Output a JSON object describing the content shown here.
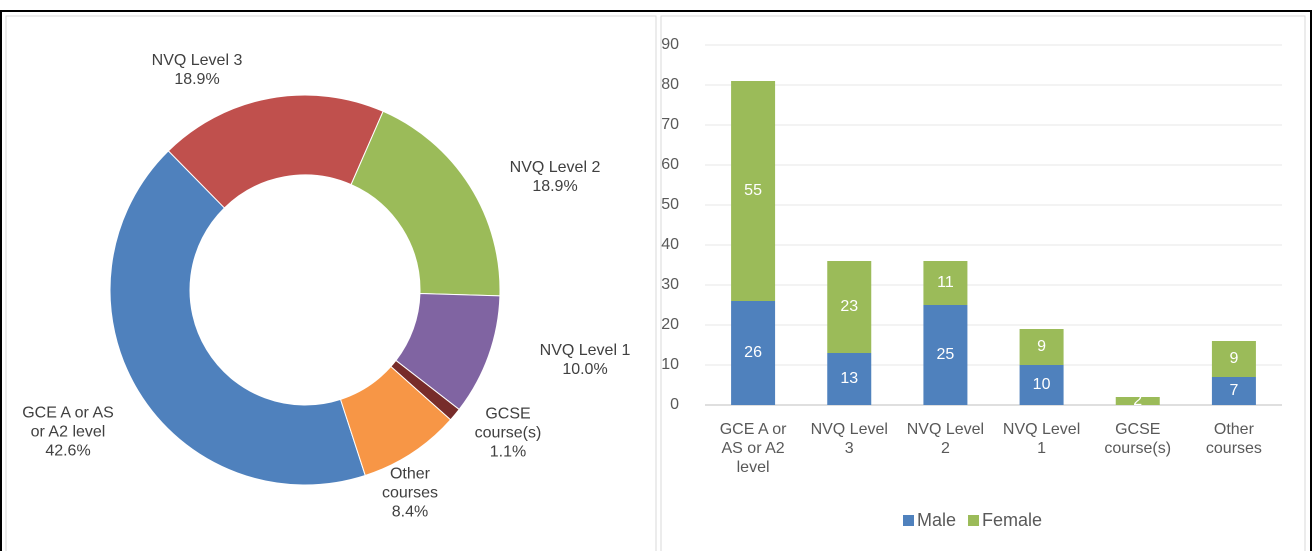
{
  "chart_data": [
    {
      "type": "donut",
      "categories": [
        "GCE A or AS or A2 level",
        "NVQ Level 3",
        "NVQ Level 2",
        "NVQ Level 1",
        "GCSE course(s)",
        "Other courses"
      ],
      "values": [
        42.6,
        18.9,
        18.9,
        10.0,
        1.1,
        8.4
      ],
      "value_labels": [
        "42.6%",
        "18.9%",
        "18.9%",
        "10.0%",
        "1.1%",
        "8.4%"
      ],
      "colors": [
        "#4f81bd",
        "#c0504d",
        "#9bbb59",
        "#8064a2",
        "#772c2a",
        "#f79646"
      ]
    },
    {
      "type": "stacked_bar",
      "categories": [
        "GCE A or AS or A2 level",
        "NVQ Level 3",
        "NVQ Level 2",
        "NVQ Level 1",
        "GCSE course(s)",
        "Other courses"
      ],
      "series": [
        {
          "name": "Male",
          "color": "#4f81bd",
          "values": [
            26,
            13,
            25,
            10,
            0,
            7
          ]
        },
        {
          "name": "Female",
          "color": "#9bbb59",
          "values": [
            55,
            23,
            11,
            9,
            2,
            9
          ]
        }
      ],
      "ylim": [
        0,
        90
      ],
      "yticks": [
        0,
        10,
        20,
        30,
        40,
        50,
        60,
        70,
        80,
        90
      ],
      "grid": true,
      "legend": "bottom"
    }
  ]
}
